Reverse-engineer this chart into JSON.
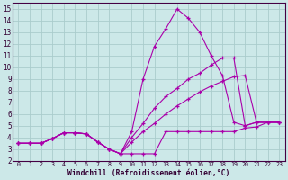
{
  "bg_color": "#cce8e8",
  "grid_color": "#aacccc",
  "line_color": "#aa00aa",
  "xlabel": "Windchill (Refroidissement éolien,°C)",
  "xlim": [
    -0.5,
    23.5
  ],
  "ylim": [
    2,
    15.5
  ],
  "yticks": [
    2,
    3,
    4,
    5,
    6,
    7,
    8,
    9,
    10,
    11,
    12,
    13,
    14,
    15
  ],
  "xticks": [
    0,
    1,
    2,
    3,
    4,
    5,
    6,
    7,
    8,
    9,
    10,
    11,
    12,
    13,
    14,
    15,
    16,
    17,
    18,
    19,
    20,
    21,
    22,
    23
  ],
  "lines": [
    {
      "x": [
        0,
        1,
        2,
        3,
        4,
        5,
        6,
        7,
        8,
        9,
        10,
        11,
        12,
        13,
        14,
        15,
        16,
        17,
        18,
        19,
        20,
        21,
        22,
        23
      ],
      "y": [
        3.5,
        3.5,
        3.5,
        3.9,
        4.4,
        4.4,
        4.3,
        3.6,
        3.0,
        2.6,
        2.6,
        2.6,
        2.6,
        4.5,
        4.5,
        4.5,
        4.5,
        4.5,
        4.5,
        4.5,
        4.8,
        4.9,
        5.3,
        5.3
      ]
    },
    {
      "x": [
        0,
        1,
        2,
        3,
        4,
        5,
        6,
        7,
        8,
        9,
        10,
        11,
        12,
        13,
        14,
        15,
        16,
        17,
        18,
        19,
        20,
        21,
        22,
        23
      ],
      "y": [
        3.5,
        3.5,
        3.5,
        3.9,
        4.4,
        4.4,
        4.3,
        3.6,
        3.0,
        2.6,
        4.5,
        9.0,
        11.8,
        13.3,
        15.0,
        14.2,
        13.0,
        11.0,
        9.3,
        5.3,
        5.0,
        5.3,
        5.3,
        5.3
      ]
    },
    {
      "x": [
        0,
        1,
        2,
        3,
        4,
        5,
        6,
        7,
        8,
        9,
        10,
        11,
        12,
        13,
        14,
        15,
        16,
        17,
        18,
        19,
        20,
        21,
        22,
        23
      ],
      "y": [
        3.5,
        3.5,
        3.5,
        3.9,
        4.4,
        4.4,
        4.3,
        3.6,
        3.0,
        2.6,
        4.0,
        5.2,
        6.5,
        7.5,
        8.2,
        9.0,
        9.5,
        10.2,
        10.8,
        10.8,
        5.0,
        5.3,
        5.3,
        5.3
      ]
    },
    {
      "x": [
        0,
        1,
        2,
        3,
        4,
        5,
        6,
        7,
        8,
        9,
        10,
        11,
        12,
        13,
        14,
        15,
        16,
        17,
        18,
        19,
        20,
        21,
        22,
        23
      ],
      "y": [
        3.5,
        3.5,
        3.5,
        3.9,
        4.4,
        4.4,
        4.3,
        3.6,
        3.0,
        2.6,
        3.6,
        4.5,
        5.2,
        6.0,
        6.7,
        7.3,
        7.9,
        8.4,
        8.8,
        9.2,
        9.3,
        5.3,
        5.3,
        5.3
      ]
    }
  ]
}
